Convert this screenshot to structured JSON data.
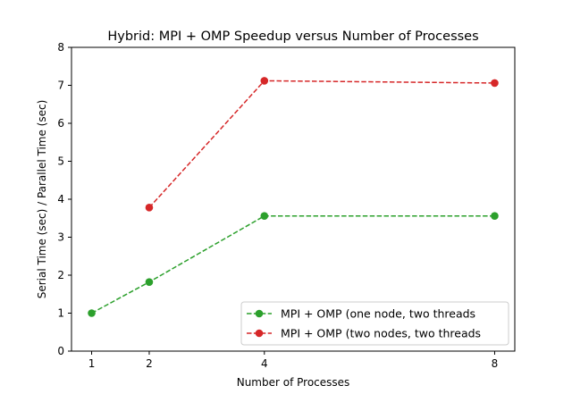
{
  "chart_data": {
    "type": "line",
    "title": "Hybrid: MPI + OMP Speedup versus Number of Processes",
    "xlabel": "Number of Processes",
    "ylabel": "Serial Time (sec) / Parallel Time (sec)",
    "x_ticks": [
      1,
      2,
      4,
      8
    ],
    "y_ticks": [
      0,
      1,
      2,
      3,
      4,
      5,
      6,
      7,
      8
    ],
    "xlim": [
      0.65,
      8.35
    ],
    "ylim": [
      0,
      8
    ],
    "grid": false,
    "legend_position": "bottom-right",
    "series": [
      {
        "name": "MPI + OMP (one node, two threads",
        "color": "#2ca02c",
        "line_style": "dashed",
        "marker": "circle",
        "x": [
          1,
          2,
          4,
          8
        ],
        "y": [
          1.0,
          1.82,
          3.56,
          3.56
        ]
      },
      {
        "name": "MPI + OMP (two nodes, two threads",
        "color": "#d62728",
        "line_style": "dashed",
        "marker": "circle",
        "x": [
          2,
          4,
          8
        ],
        "y": [
          3.78,
          7.12,
          7.06
        ]
      }
    ]
  }
}
